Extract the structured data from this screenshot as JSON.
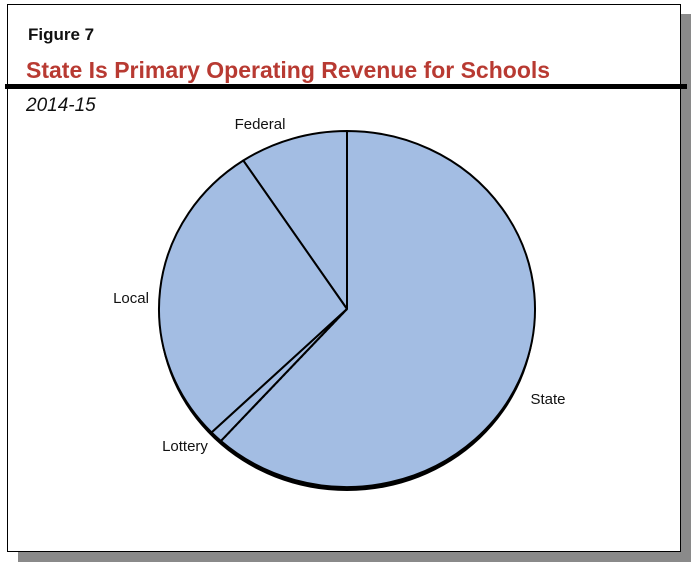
{
  "figure_label": "Figure 7",
  "chart_data": {
    "type": "pie",
    "title": "State Is Primary Operating Revenue for Schools",
    "subtitle": "2014-15",
    "slices": [
      {
        "label": "Federal",
        "value": 9.3
      },
      {
        "label": "Local",
        "value": 27.9
      },
      {
        "label": "Lottery",
        "value": 1.1
      },
      {
        "label": "State",
        "value": 61.7
      }
    ],
    "colors": {
      "fill": "#a3bde3",
      "title": "#b83a32"
    },
    "start": "12 o'clock, counterclockwise"
  }
}
